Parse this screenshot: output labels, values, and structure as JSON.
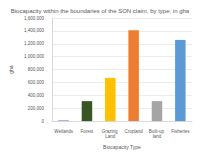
{
  "chart_data": {
    "type": "bar",
    "title": "Biocapacity within the boundaries of the SON claim, by type, in gha",
    "x_label": "Biocapacity Type",
    "y_label": "gha",
    "categories": [
      "Wetlands",
      "Forest",
      "Grazing Land",
      "Cropland",
      "Built-up land",
      "Fisheries"
    ],
    "values": [
      10000,
      310000,
      670000,
      1410000,
      310000,
      1260000
    ],
    "colors": [
      "#4472c4",
      "#375623",
      "#ffc000",
      "#ed7d31",
      "#a5a5a5",
      "#5b9bd5"
    ],
    "ylim": [
      0,
      1600000
    ],
    "yticks": [
      0,
      {
        "value": 200000,
        "label": "200,000"
      },
      {
        "value": 400000,
        "label": "400,000"
      },
      {
        "value": 600000,
        "label": "600,000"
      },
      {
        "value": 800000,
        "label": "800,000"
      },
      {
        "value": 1000000,
        "label": "1,000,000"
      },
      {
        "value": 1200000,
        "label": "1,200,000"
      },
      {
        "value": 1400000,
        "label": "1,400,000"
      },
      {
        "value": 1600000,
        "label": "1,600,000"
      }
    ],
    "grid": true
  }
}
